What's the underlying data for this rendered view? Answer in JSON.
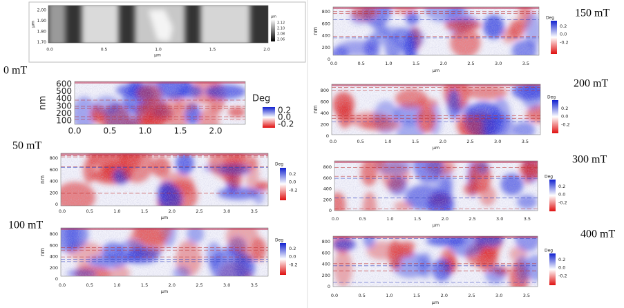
{
  "top_panel": {
    "xticks": [
      "0.0",
      "0.5",
      "1.0",
      "1.5",
      "2.0"
    ],
    "yticks": [
      "2.00",
      "1.90",
      "1.80",
      "1.70"
    ],
    "xlabel": "µm",
    "ylabel": "µm",
    "colorbar": {
      "unit": "µm",
      "ticks": [
        "2.12",
        "2.10",
        "2.08",
        "2.06"
      ]
    }
  },
  "panels": [
    {
      "label": "0 mT",
      "xticks": [
        "0.0",
        "0.5",
        "1.0",
        "1.5",
        "2.0"
      ],
      "yticks": [
        "600",
        "500",
        "400",
        "300",
        "200",
        "100"
      ],
      "ylabel": "nm",
      "colorbar": {
        "unit": "Deg",
        "ticks": [
          "0.2",
          "0.0",
          "-0.2"
        ]
      }
    },
    {
      "label": "50 mT",
      "xticks": [
        "0.0",
        "0.5",
        "1.0",
        "1.5",
        "2.0",
        "2.5",
        "3.0",
        "3.5"
      ],
      "yticks": [
        "800",
        "600",
        "400",
        "200",
        "0"
      ],
      "ylabel": "nm",
      "xlabel": "µm",
      "colorbar": {
        "unit": "Deg",
        "ticks": [
          "0.2",
          "0.0",
          "-0.2"
        ]
      }
    },
    {
      "label": "100 mT",
      "xticks": [
        "0.0",
        "0.5",
        "1.0",
        "1.5",
        "2.0",
        "2.5",
        "3.0",
        "3.5"
      ],
      "yticks": [
        "800",
        "600",
        "400",
        "200",
        "0"
      ],
      "ylabel": "nm",
      "xlabel": "µm",
      "colorbar": {
        "unit": "Deg",
        "ticks": [
          "0.2",
          "0.0",
          "-0.2"
        ]
      }
    },
    {
      "label": "150 mT",
      "xticks": [
        "0.0",
        "0.5",
        "1.0",
        "1.5",
        "2.0",
        "2.5",
        "3.0",
        "3.5"
      ],
      "yticks": [
        "800",
        "600",
        "400",
        "200",
        "0"
      ],
      "ylabel": "nm",
      "xlabel": "µm",
      "colorbar": {
        "unit": "Deg",
        "ticks": [
          "0.2",
          "0.0",
          "-0.2"
        ]
      }
    },
    {
      "label": "200 mT",
      "xticks": [
        "0.0",
        "0.5",
        "1.0",
        "1.5",
        "2.0",
        "2.5",
        "3.0",
        "3.5"
      ],
      "yticks": [
        "800",
        "600",
        "400",
        "200",
        "0"
      ],
      "ylabel": "nm",
      "xlabel": "µm",
      "colorbar": {
        "unit": "Deg",
        "ticks": [
          "0.2",
          "0.0",
          "-0.2"
        ]
      }
    },
    {
      "label": "300 mT",
      "xticks": [
        "0.0",
        "0.5",
        "1.0",
        "1.5",
        "2.0",
        "2.5",
        "3.0",
        "3.5"
      ],
      "yticks": [
        "800",
        "600",
        "400",
        "200",
        "0"
      ],
      "xlabel": "µm",
      "colorbar": {
        "unit": "Deg",
        "ticks": [
          "0.2",
          "0.0",
          "-0.2"
        ]
      }
    },
    {
      "label": "400 mT",
      "xticks": [
        "0.0",
        "0.5",
        "1.0",
        "1.5",
        "2.0",
        "2.5",
        "3.0",
        "3.5"
      ],
      "yticks": [
        "800",
        "600",
        "400",
        "200",
        "0"
      ],
      "xlabel": "µm",
      "colorbar": {
        "unit": "Deg",
        "ticks": [
          "0.2",
          "0.0",
          "-0.2"
        ]
      }
    }
  ]
}
